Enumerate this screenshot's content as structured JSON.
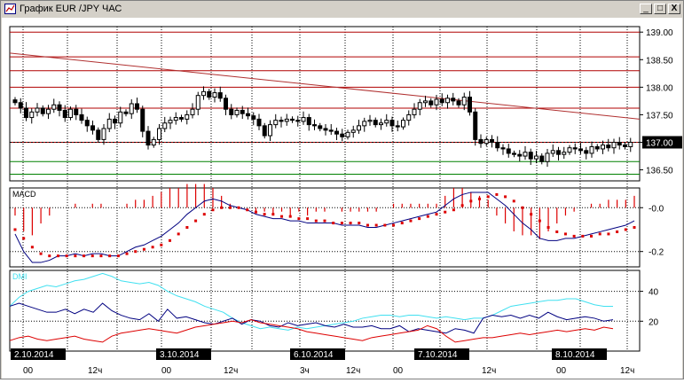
{
  "window": {
    "title": "График EUR /JPY ЧАС",
    "minimize_label": "_",
    "maximize_label": "□",
    "close_label": "X"
  },
  "colors": {
    "price_grid": "#b00000",
    "trendline": "#b03030",
    "support": "#008000",
    "macd_line": "#000080",
    "macd_signal": "#dd0000",
    "macd_hist": "#dd0000",
    "dmi_adx": "#40e0f0",
    "dmi_plus": "#000080",
    "dmi_minus": "#dd0000",
    "current_price_bg": "#000000",
    "current_price_fg": "#ffffff"
  },
  "price_panel": {
    "y_ticks": [
      "139.00",
      "138.50",
      "138.00",
      "137.50",
      "137.00",
      "136.50"
    ],
    "current_price": "137.00"
  },
  "macd_panel": {
    "label": "MACD",
    "y_ticks": [
      "-0.0",
      "-0.2"
    ]
  },
  "dmi_panel": {
    "label": "DMI",
    "y_ticks": [
      "40",
      "20"
    ]
  },
  "time_axis": {
    "dates": [
      "2.10.2014",
      "3.10.2014",
      "6.10.2014",
      "7.10.2014",
      "8.10.2014"
    ],
    "hour_labels": [
      "00",
      "12ч",
      "00",
      "12ч",
      "3ч",
      "12ч",
      "00",
      "12ч",
      "00",
      "12ч"
    ]
  },
  "chart_data": {
    "type": "candlestick",
    "instrument": "EUR /JPY",
    "timeframe": "ЧАС",
    "price_ylim": [
      136.3,
      139.1
    ],
    "horizontal_levels_red": [
      139.0,
      138.55,
      138.3,
      138.0,
      137.62,
      137.0
    ],
    "horizontal_levels_green": [
      136.65,
      136.42
    ],
    "trendline": {
      "from": 138.62,
      "to": 137.42
    },
    "closes": [
      137.72,
      137.62,
      137.45,
      137.55,
      137.62,
      137.52,
      137.6,
      137.68,
      137.58,
      137.45,
      137.6,
      137.5,
      137.4,
      137.3,
      137.22,
      137.05,
      137.25,
      137.42,
      137.35,
      137.55,
      137.52,
      137.7,
      137.6,
      137.2,
      136.95,
      137.05,
      137.25,
      137.35,
      137.4,
      137.45,
      137.42,
      137.5,
      137.6,
      137.85,
      137.92,
      137.82,
      137.9,
      137.8,
      137.6,
      137.5,
      137.58,
      137.52,
      137.48,
      137.42,
      137.3,
      137.12,
      137.32,
      137.4,
      137.38,
      137.42,
      137.4,
      137.38,
      137.45,
      137.32,
      137.3,
      137.25,
      137.22,
      137.2,
      137.15,
      137.1,
      137.18,
      137.22,
      137.3,
      137.38,
      137.4,
      137.32,
      137.35,
      137.4,
      137.3,
      137.28,
      137.4,
      137.5,
      137.6,
      137.72,
      137.75,
      137.68,
      137.78,
      137.72,
      137.8,
      137.75,
      137.68,
      137.82,
      137.55,
      137.05,
      136.98,
      137.05,
      137.0,
      136.9,
      136.88,
      136.8,
      136.78,
      136.75,
      136.82,
      136.7,
      136.75,
      136.65,
      136.8,
      136.85,
      136.78,
      136.82,
      136.9,
      136.88,
      136.85,
      136.8,
      136.92,
      136.88,
      136.95,
      136.9,
      137.0,
      136.95,
      136.92,
      137.0
    ],
    "macd": {
      "ylim": [
        -0.27,
        0.09
      ],
      "main": [
        -0.12,
        -0.2,
        -0.25,
        -0.25,
        -0.24,
        -0.22,
        -0.22,
        -0.21,
        -0.22,
        -0.21,
        -0.21,
        -0.22,
        -0.22,
        -0.2,
        -0.18,
        -0.17,
        -0.15,
        -0.13,
        -0.1,
        -0.07,
        -0.03,
        0.0,
        0.03,
        0.04,
        0.03,
        0.01,
        0.0,
        -0.01,
        -0.03,
        -0.04,
        -0.05,
        -0.05,
        -0.06,
        -0.06,
        -0.07,
        -0.07,
        -0.07,
        -0.07,
        -0.08,
        -0.08,
        -0.08,
        -0.09,
        -0.09,
        -0.08,
        -0.07,
        -0.06,
        -0.05,
        -0.04,
        -0.03,
        -0.02,
        0.01,
        0.04,
        0.06,
        0.07,
        0.07,
        0.07,
        0.04,
        0.01,
        -0.03,
        -0.07,
        -0.1,
        -0.14,
        -0.15,
        -0.15,
        -0.14,
        -0.14,
        -0.13,
        -0.12,
        -0.11,
        -0.1,
        -0.09,
        -0.08,
        -0.06
      ],
      "signal": [
        -0.1,
        -0.14,
        -0.18,
        -0.21,
        -0.22,
        -0.22,
        -0.22,
        -0.22,
        -0.22,
        -0.22,
        -0.22,
        -0.22,
        -0.22,
        -0.21,
        -0.2,
        -0.19,
        -0.18,
        -0.17,
        -0.15,
        -0.12,
        -0.09,
        -0.06,
        -0.03,
        -0.01,
        0.0,
        0.0,
        0.0,
        -0.01,
        -0.02,
        -0.03,
        -0.03,
        -0.04,
        -0.04,
        -0.05,
        -0.05,
        -0.06,
        -0.06,
        -0.07,
        -0.07,
        -0.07,
        -0.07,
        -0.08,
        -0.08,
        -0.08,
        -0.08,
        -0.07,
        -0.06,
        -0.05,
        -0.04,
        -0.03,
        -0.02,
        -0.01,
        0.01,
        0.03,
        0.04,
        0.05,
        0.06,
        0.05,
        0.03,
        0.0,
        -0.03,
        -0.06,
        -0.09,
        -0.11,
        -0.12,
        -0.13,
        -0.13,
        -0.13,
        -0.12,
        -0.12,
        -0.11,
        -0.1,
        -0.09
      ]
    },
    "dmi": {
      "ylim": [
        0,
        54
      ],
      "adx": [
        30,
        36,
        40,
        42,
        44,
        43,
        45,
        47,
        48,
        50,
        52,
        50,
        47,
        46,
        45,
        46,
        44,
        40,
        37,
        35,
        33,
        30,
        28,
        26,
        22,
        19,
        17,
        15,
        16,
        15,
        14,
        16,
        15,
        16,
        17,
        18,
        19,
        20,
        22,
        23,
        24,
        24,
        23,
        24,
        24,
        23,
        22,
        23,
        22,
        21,
        22,
        22,
        24,
        27,
        30,
        31,
        32,
        33,
        34,
        34,
        35,
        35,
        33,
        31,
        30,
        30
      ],
      "plus_di": [
        30,
        32,
        30,
        28,
        26,
        26,
        28,
        25,
        28,
        26,
        32,
        27,
        24,
        22,
        21,
        25,
        20,
        28,
        22,
        23,
        21,
        19,
        18,
        20,
        22,
        18,
        21,
        20,
        17,
        16,
        19,
        17,
        18,
        19,
        17,
        16,
        18,
        16,
        16,
        17,
        15,
        15,
        17,
        13,
        15,
        14,
        13,
        12,
        15,
        14,
        12,
        22,
        24,
        23,
        24,
        22,
        24,
        22,
        26,
        23,
        21,
        22,
        23,
        22,
        20,
        21
      ],
      "minus_di": [
        7,
        9,
        10,
        8,
        7,
        8,
        9,
        10,
        8,
        7,
        6,
        10,
        12,
        13,
        14,
        15,
        14,
        13,
        12,
        14,
        16,
        17,
        18,
        19,
        20,
        19,
        21,
        19,
        18,
        17,
        16,
        15,
        13,
        12,
        11,
        10,
        9,
        8,
        7,
        9,
        10,
        11,
        12,
        13,
        14,
        17,
        15,
        10,
        6,
        7,
        8,
        9,
        9,
        10,
        11,
        12,
        11,
        12,
        13,
        14,
        13,
        14,
        15,
        14,
        16,
        15
      ]
    }
  }
}
